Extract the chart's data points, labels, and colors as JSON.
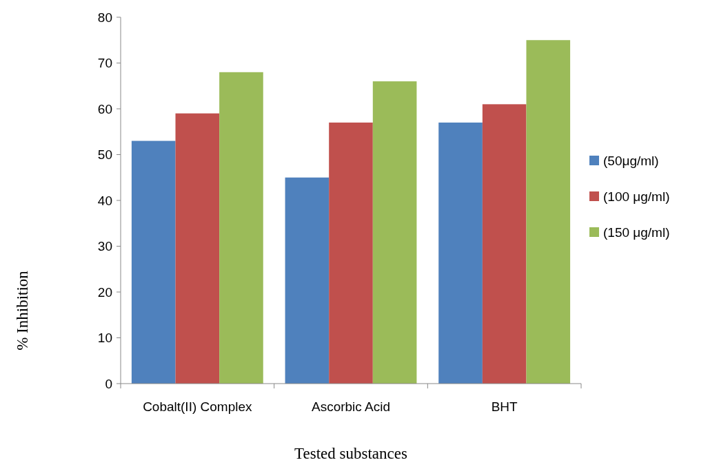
{
  "chart_data": {
    "type": "bar",
    "xlabel": "Tested substances",
    "ylabel": "% Inhibition",
    "categories": [
      "Cobalt(II) Complex",
      "Ascorbic Acid",
      "BHT"
    ],
    "series": [
      {
        "name": "(50μg/ml)",
        "color": "#4f81bd",
        "values": [
          53,
          45,
          57
        ]
      },
      {
        "name": "(100 μg/ml)",
        "color": "#c0504d",
        "values": [
          59,
          57,
          61
        ]
      },
      {
        "name": "(150 μg/ml)",
        "color": "#9bbb59",
        "values": [
          68,
          66,
          75
        ]
      }
    ],
    "ylim": [
      0,
      80
    ],
    "yticks": [
      0,
      10,
      20,
      30,
      40,
      50,
      60,
      70,
      80
    ],
    "grid": false,
    "legend": "right"
  }
}
